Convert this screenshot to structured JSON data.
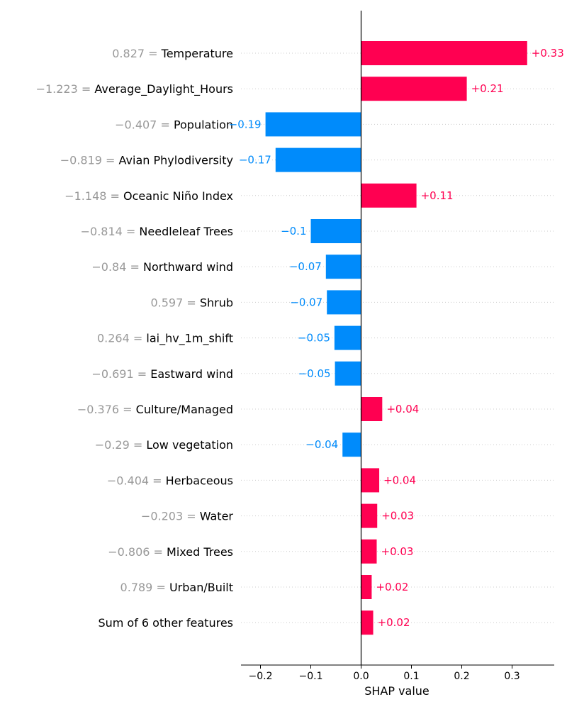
{
  "chart_data": {
    "type": "bar",
    "orientation": "horizontal",
    "xlabel": "SHAP value",
    "xlim": [
      -0.24,
      0.38
    ],
    "xticks": [
      -0.2,
      -0.1,
      0.0,
      0.1,
      0.2,
      0.3
    ],
    "xtick_labels": [
      "−0.2",
      "−0.1",
      "0.0",
      "0.1",
      "0.2",
      "0.3"
    ],
    "grid": "dotted horizontal row guides",
    "colors": {
      "positive": "#ff0051",
      "negative": "#008bfb",
      "feature_value": "#999999"
    },
    "features": [
      {
        "value_text": "0.827 =",
        "name": "Temperature",
        "shap": 0.33,
        "label": "+0.33"
      },
      {
        "value_text": "−1.223 =",
        "name": "Average_Daylight_Hours",
        "shap": 0.21,
        "label": "+0.21"
      },
      {
        "value_text": "−0.407 =",
        "name": "Population",
        "shap": -0.19,
        "label": "−0.19"
      },
      {
        "value_text": "−0.819 =",
        "name": "Avian Phylodiversity",
        "shap": -0.17,
        "label": "−0.17"
      },
      {
        "value_text": "−1.148 =",
        "name": "Oceanic Niño Index",
        "shap": 0.11,
        "label": "+0.11"
      },
      {
        "value_text": "−0.814 =",
        "name": "Needleleaf Trees",
        "shap": -0.1,
        "label": "−0.1"
      },
      {
        "value_text": "−0.84 =",
        "name": "Northward wind",
        "shap": -0.07,
        "label": "−0.07"
      },
      {
        "value_text": "0.597 =",
        "name": "Shrub",
        "shap": -0.068,
        "label": "−0.07"
      },
      {
        "value_text": "0.264 =",
        "name": "lai_hv_1m_shift",
        "shap": -0.053,
        "label": "−0.05"
      },
      {
        "value_text": "−0.691 =",
        "name": "Eastward wind",
        "shap": -0.052,
        "label": "−0.05"
      },
      {
        "value_text": "−0.376 =",
        "name": "Culture/Managed",
        "shap": 0.042,
        "label": "+0.04"
      },
      {
        "value_text": "−0.29 =",
        "name": "Low vegetation",
        "shap": -0.037,
        "label": "−0.04"
      },
      {
        "value_text": "−0.404 =",
        "name": "Herbaceous",
        "shap": 0.036,
        "label": "+0.04"
      },
      {
        "value_text": "−0.203 =",
        "name": "Water",
        "shap": 0.032,
        "label": "+0.03"
      },
      {
        "value_text": "−0.806 =",
        "name": "Mixed Trees",
        "shap": 0.031,
        "label": "+0.03"
      },
      {
        "value_text": "0.789 =",
        "name": "Urban/Built",
        "shap": 0.021,
        "label": "+0.02"
      },
      {
        "value_text": "",
        "name": "Sum of 6 other features",
        "shap": 0.024,
        "label": "+0.02"
      }
    ]
  }
}
